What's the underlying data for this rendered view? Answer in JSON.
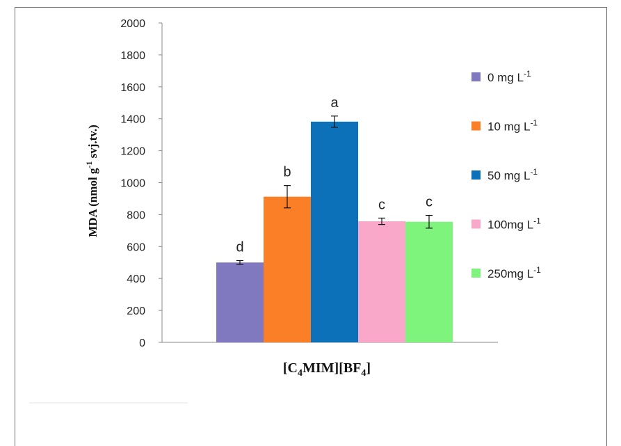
{
  "chart_data": {
    "type": "bar",
    "xlabel": "[C4MIM][BF4]",
    "xlabel_parts": {
      "pre": "[C",
      "sub1": "4",
      "mid": "MIM][BF",
      "sub2": "4",
      "post": "]"
    },
    "ylabel": "MDA (nmol g-1 svj.tv.)",
    "ylabel_parts": {
      "pre": "MDA  (nmol  g",
      "sup": "-1",
      "post": " svj.tv.)"
    },
    "ylim": [
      0,
      2000
    ],
    "yticks": [
      0,
      200,
      400,
      600,
      800,
      1000,
      1200,
      1400,
      1600,
      1800,
      2000
    ],
    "grid": false,
    "legend_position": "right",
    "categories": [
      "[C4MIM][BF4]"
    ],
    "series": [
      {
        "name": "0 mg L-1",
        "name_main": "0  mg L",
        "name_sup": "-1",
        "values": [
          500
        ],
        "error": [
          12
        ],
        "sig": "d",
        "color": "#8079c0"
      },
      {
        "name": "10 mg L-1",
        "name_main": "10  mg L",
        "name_sup": "-1",
        "values": [
          912
        ],
        "error": [
          70
        ],
        "sig": "b",
        "color": "#fb7f27"
      },
      {
        "name": "50 mg L-1",
        "name_main": "50 mg L",
        "name_sup": "-1",
        "values": [
          1382
        ],
        "error": [
          35
        ],
        "sig": "a",
        "color": "#0d71b9"
      },
      {
        "name": "100mg L-1",
        "name_main": "100mg L",
        "name_sup": "-1",
        "values": [
          758
        ],
        "error": [
          20
        ],
        "sig": "c",
        "color": "#f9a8c9"
      },
      {
        "name": "250mg L-1",
        "name_main": "250mg L",
        "name_sup": "-1",
        "values": [
          755
        ],
        "error": [
          40
        ],
        "sig": "c",
        "color": "#7ef47c"
      }
    ]
  }
}
